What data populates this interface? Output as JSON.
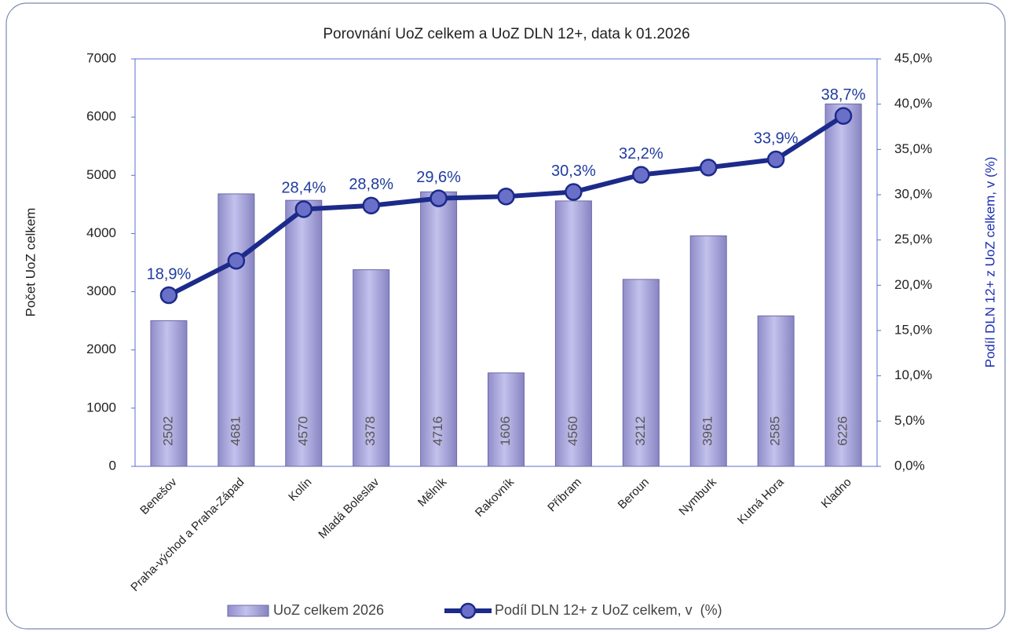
{
  "chart_data": {
    "type": "bar-line",
    "title": "Porovnání UoZ celkem a UoZ DLN 12+, data k 01.2026",
    "y_label": "Počet UoZ celkem",
    "y2_label": "Podíl DLN 12+ z UoZ celkem, v (%)",
    "categories": [
      "Benešov",
      "Praha-východ a Praha-Západ",
      "Kolín",
      "Mladá Boleslav",
      "Mělník",
      "Rakovník",
      "Příbram",
      "Beroun",
      "Nymburk",
      "Kutná Hora",
      "Kladno"
    ],
    "series": [
      {
        "name": "UoZ celkem 2026",
        "type": "bar",
        "color": "#a9a7dc",
        "values": [
          2502,
          4681,
          4570,
          3378,
          4716,
          1606,
          4560,
          3212,
          3961,
          2585,
          6226
        ]
      },
      {
        "name": "Podíl DLN 12+ z UoZ celkem, v  (%)",
        "type": "line",
        "axis": "y2",
        "color": "#1c2a8a",
        "values": [
          18.9,
          22.7,
          28.4,
          28.8,
          29.6,
          29.8,
          30.3,
          32.2,
          33.0,
          33.9,
          38.7
        ],
        "value_labels": [
          "18,9%",
          null,
          "28,4%",
          "28,8%",
          "29,6%",
          null,
          "30,3%",
          "32,2%",
          null,
          "33,9%",
          "38,7%"
        ]
      }
    ],
    "ylim": [
      0,
      7000
    ],
    "yticks": [
      0,
      1000,
      2000,
      3000,
      4000,
      5000,
      6000,
      7000
    ],
    "y2lim": [
      0,
      45
    ],
    "y2ticks": [
      {
        "value": 0,
        "label": "0,0%"
      },
      {
        "value": 5,
        "label": "5,0%"
      },
      {
        "value": 10,
        "label": "10,0%"
      },
      {
        "value": 15,
        "label": "15,0%"
      },
      {
        "value": 20,
        "label": "20,0%"
      },
      {
        "value": 25,
        "label": "25,0%"
      },
      {
        "value": 30,
        "label": "30,0%"
      },
      {
        "value": 35,
        "label": "35,0%"
      },
      {
        "value": 40,
        "label": "40,0%"
      },
      {
        "value": 45,
        "label": "45,0%"
      }
    ],
    "grid": false,
    "legend": "bottom"
  }
}
